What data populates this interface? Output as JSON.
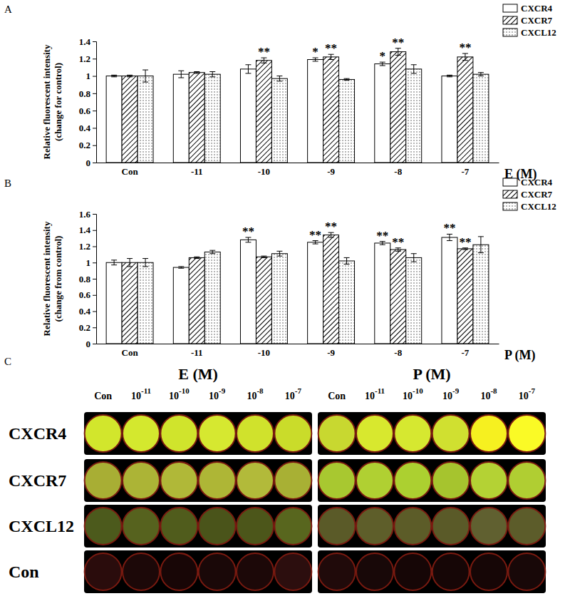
{
  "chart_data": [
    {
      "type": "bar",
      "title": "A",
      "x_label": "E (M)",
      "y_label": [
        "Relative fluorescent intensity",
        "(change for control)"
      ],
      "categories": [
        "Con",
        "-11",
        "-10",
        "-9",
        "-8",
        "-7"
      ],
      "series": [
        {
          "name": "CXCR4",
          "color": "#ffffff",
          "values": [
            1.0,
            1.02,
            1.08,
            1.19,
            1.14,
            1.0
          ],
          "errors": [
            0.01,
            0.04,
            0.05,
            0.02,
            0.02,
            0.01
          ],
          "annotations": [
            null,
            null,
            null,
            "*",
            "*",
            null
          ]
        },
        {
          "name": "CXCR7",
          "color": "#ffffff",
          "values": [
            1.0,
            1.04,
            1.18,
            1.22,
            1.28,
            1.22
          ],
          "errors": [
            0.01,
            0.01,
            0.03,
            0.03,
            0.04,
            0.04
          ],
          "annotations": [
            null,
            null,
            "**",
            "**",
            "**",
            "**"
          ]
        },
        {
          "name": "CXCL12",
          "color": "#ffffff",
          "values": [
            1.0,
            1.02,
            0.97,
            0.96,
            1.08,
            1.02
          ],
          "errors": [
            0.07,
            0.03,
            0.03,
            0.01,
            0.05,
            0.02
          ],
          "annotations": [
            null,
            null,
            null,
            null,
            null,
            null
          ]
        }
      ],
      "ylim": [
        0,
        1.4
      ],
      "yticks": [
        0,
        0.2,
        0.4,
        0.6,
        0.8,
        1,
        1.2,
        1.4
      ],
      "legend": "upper right",
      "grid": false
    },
    {
      "type": "bar",
      "title": "B",
      "x_label": "P (M)",
      "y_label": [
        "Relative fluorescent intensity",
        "(change from control)"
      ],
      "categories": [
        "Con",
        "-11",
        "-10",
        "-9",
        "-8",
        "-7"
      ],
      "series": [
        {
          "name": "CXCR4",
          "color": "#ffffff",
          "values": [
            1.0,
            0.94,
            1.28,
            1.25,
            1.24,
            1.31
          ],
          "errors": [
            0.03,
            0.01,
            0.03,
            0.02,
            0.02,
            0.04
          ],
          "annotations": [
            null,
            null,
            "**",
            "**",
            "**",
            "**"
          ]
        },
        {
          "name": "CXCR7",
          "color": "#ffffff",
          "values": [
            1.0,
            1.06,
            1.07,
            1.34,
            1.16,
            1.17
          ],
          "errors": [
            0.05,
            0.01,
            0.01,
            0.03,
            0.02,
            0.01
          ],
          "annotations": [
            null,
            null,
            null,
            "**",
            "**",
            "**"
          ]
        },
        {
          "name": "CXCL12",
          "color": "#ffffff",
          "values": [
            1.0,
            1.13,
            1.11,
            1.02,
            1.06,
            1.22
          ],
          "errors": [
            0.05,
            0.02,
            0.03,
            0.04,
            0.05,
            0.1
          ],
          "annotations": [
            null,
            null,
            null,
            null,
            null,
            null
          ]
        }
      ],
      "ylim": [
        0,
        1.6
      ],
      "yticks": [
        0,
        0.2,
        0.4,
        0.6,
        0.8,
        1,
        1.2,
        1.4,
        1.6
      ],
      "legend": "upper right",
      "grid": false
    }
  ],
  "image_panel": {
    "label": "C",
    "row_labels": [
      "CXCR4",
      "CXCR7",
      "CXCL12",
      "Con"
    ],
    "groups": [
      {
        "title": "E (M)",
        "columns": [
          {
            "base": "Con"
          },
          {
            "base": "10",
            "exponent": "-11"
          },
          {
            "base": "10",
            "exponent": "-10"
          },
          {
            "base": "10",
            "exponent": "-9"
          },
          {
            "base": "10",
            "exponent": "-8"
          },
          {
            "base": "10",
            "exponent": "-7"
          }
        ],
        "well_colors": [
          [
            "#d2e62c",
            "#d4e82e",
            "#d0e42c",
            "#d6e830",
            "#d0e22c",
            "#cadc2a"
          ],
          [
            "#a8ae34",
            "#acb436",
            "#b0b838",
            "#aeb636",
            "#b2ba3a",
            "#a8b034"
          ],
          [
            "#4c5a1c",
            "#56621e",
            "#505c1c",
            "#4a541a",
            "#4c561a",
            "#58661e"
          ],
          [
            "#2a0c0c",
            "#1c0808",
            "#180606",
            "#1a0808",
            "#1c0808",
            "#2c0e0e"
          ]
        ]
      },
      {
        "title": "P (M)",
        "columns": [
          {
            "base": "Con"
          },
          {
            "base": "10",
            "exponent": "-11"
          },
          {
            "base": "10",
            "exponent": "-10"
          },
          {
            "base": "10",
            "exponent": "-9"
          },
          {
            "base": "10",
            "exponent": "-8"
          },
          {
            "base": "10",
            "exponent": "-7"
          }
        ],
        "well_colors": [
          [
            "#c8d830",
            "#d8e82e",
            "#d6e830",
            "#d0e030",
            "#f6f020",
            "#fafa26"
          ],
          [
            "#a8c830",
            "#b0d032",
            "#acd030",
            "#a6c42e",
            "#b4d234",
            "#b0ce32"
          ],
          [
            "#5a5a28",
            "#5e5e2a",
            "#5c5c28",
            "#5a5a28",
            "#606030",
            "#5c5c2a"
          ],
          [
            "#200a0a",
            "#180808",
            "#160606",
            "#160606",
            "#160606",
            "#180808"
          ]
        ]
      }
    ]
  }
}
